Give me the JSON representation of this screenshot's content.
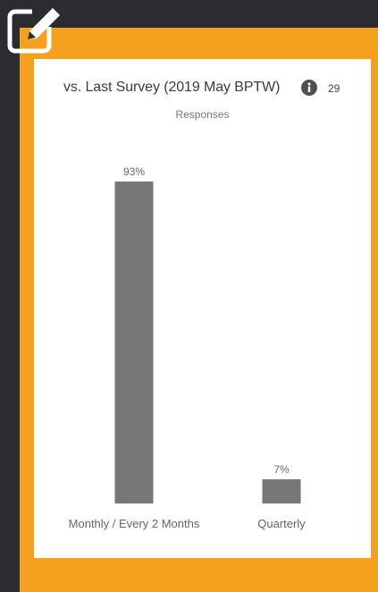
{
  "toolbar": {
    "edit_icon": "edit-square-pencil-icon"
  },
  "card": {
    "title": "vs. Last Survey (2019 May BPTW)",
    "info_icon": "info-circle-icon",
    "count": "29",
    "subtitle": "Responses"
  },
  "colors": {
    "frame": "#f5a01f",
    "background": "#2b2c31",
    "bar": "#777777",
    "card": "#ffffff"
  },
  "chart_data": {
    "type": "bar",
    "categories": [
      "Monthly / Every 2 Months",
      "Quarterly"
    ],
    "values": [
      93,
      7
    ],
    "value_labels": [
      "93%",
      "7%"
    ],
    "title": "",
    "xlabel": "",
    "ylabel": "",
    "ylim": [
      0,
      100
    ],
    "grid": false,
    "legend": "none"
  }
}
